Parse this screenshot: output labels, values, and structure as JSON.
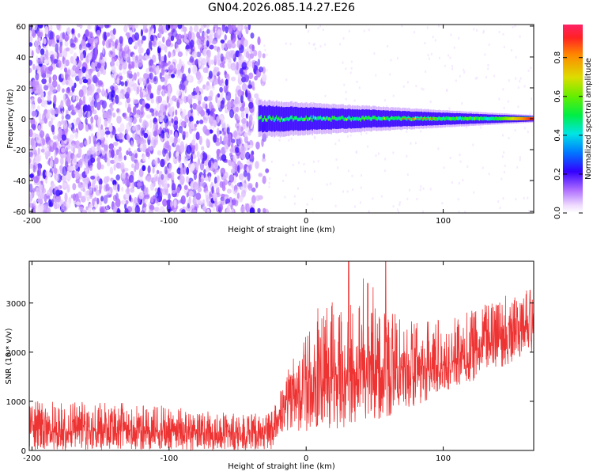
{
  "colors": {
    "snr_line": "#ee3333",
    "background": "#ffffff"
  },
  "chart_data": [
    {
      "type": "heatmap",
      "title": "GN04.2026.085.14.27.E26",
      "xlabel": "Height of straight line (km)",
      "ylabel": "Frequency (Hz)",
      "xlim": [
        -202,
        166
      ],
      "ylim": [
        -61,
        61
      ],
      "x_ticks": [
        -200,
        -100,
        0,
        100
      ],
      "y_ticks": [
        60,
        40,
        20,
        0,
        -20,
        -40,
        -60
      ],
      "colorbar": {
        "label": "Normalized spectral amplitude",
        "range": [
          0,
          0.97
        ],
        "ticks": [
          "0.0",
          "0.2",
          "0.4",
          "0.6",
          "0.8"
        ]
      },
      "features": [
        {
          "name": "broadband noise",
          "x_range": [
            -202,
            -33
          ],
          "freq_range": [
            -61,
            61
          ],
          "amplitude": 0.05
        },
        {
          "name": "signal band",
          "x_range": [
            -35,
            166
          ],
          "freq_center": 0,
          "freq_halfwidth": [
            10,
            2
          ],
          "amplitude": 0.35
        },
        {
          "name": "signal peak",
          "x_range": [
            130,
            166
          ],
          "freq_center": 0,
          "amplitude": 0.97
        }
      ]
    },
    {
      "type": "line",
      "title": "",
      "xlabel": "Height of straight line (km)",
      "ylabel": "SNR (10 * v/v)",
      "xlim": [
        -202,
        166
      ],
      "ylim": [
        0,
        3850
      ],
      "x_ticks": [
        -200,
        -100,
        0,
        100
      ],
      "y_ticks": [
        0,
        1000,
        2000,
        3000
      ],
      "series": [
        {
          "name": "SNR",
          "x": [
            -200,
            -150,
            -100,
            -50,
            -25,
            -20,
            0,
            20,
            50,
            80,
            100,
            130,
            166
          ],
          "envelope_low": [
            0,
            0,
            0,
            0,
            0,
            300,
            350,
            400,
            600,
            900,
            1200,
            1500,
            2000
          ],
          "envelope_high": [
            1000,
            1000,
            900,
            750,
            800,
            1300,
            2400,
            3100,
            2900,
            2650,
            2700,
            3000,
            3350
          ],
          "mean": [
            400,
            380,
            380,
            350,
            400,
            800,
            1300,
            1500,
            1600,
            1650,
            1700,
            2100,
            2600
          ],
          "peaks": [
            {
              "x": 31,
              "y": 3850
            },
            {
              "x": 58,
              "y": 3850
            },
            {
              "x": 45,
              "y": 3400
            }
          ]
        }
      ]
    }
  ]
}
